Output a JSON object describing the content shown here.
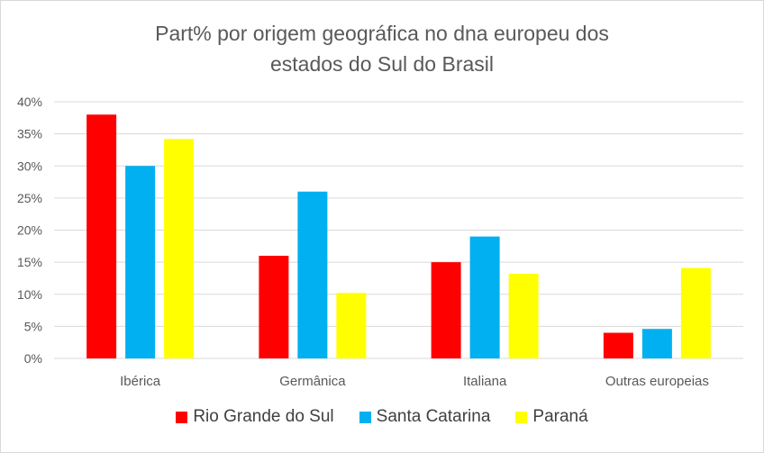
{
  "chart_data": {
    "type": "bar",
    "title_lines": [
      "Part% por origem geográfica no dna europeu dos",
      "estados do Sul do Brasil"
    ],
    "xlabel": "",
    "ylabel": "",
    "categories": [
      "Ibérica",
      "Germânica",
      "Italiana",
      "Outras europeias"
    ],
    "y_ticks": [
      "0%",
      "5%",
      "10%",
      "15%",
      "20%",
      "25%",
      "30%",
      "35%",
      "40%"
    ],
    "ylim": [
      0,
      40
    ],
    "grid": true,
    "legend_position": "bottom",
    "series": [
      {
        "name": "Rio Grande do Sul",
        "color": "#ff0000",
        "values": [
          38,
          16,
          15,
          4
        ]
      },
      {
        "name": "Santa Catarina",
        "color": "#00b0f0",
        "values": [
          30,
          26,
          19,
          4.6
        ]
      },
      {
        "name": "Paraná",
        "color": "#ffff00",
        "values": [
          34.2,
          10.2,
          13.2,
          14.1
        ]
      }
    ]
  }
}
